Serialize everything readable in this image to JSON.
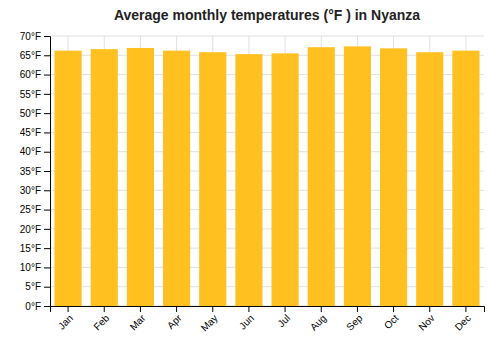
{
  "chart_data": {
    "type": "bar",
    "title": "Average monthly temperatures (°F ) in Nyanza",
    "categories": [
      "Jan",
      "Feb",
      "Mar",
      "Apr",
      "May",
      "Jun",
      "Jul",
      "Aug",
      "Sep",
      "Oct",
      "Nov",
      "Dec"
    ],
    "values": [
      66.2,
      66.6,
      66.9,
      66.2,
      65.8,
      65.3,
      65.5,
      67.1,
      67.3,
      66.8,
      65.8,
      66.2
    ],
    "color": "#FFC020",
    "ylim": [
      0,
      70
    ],
    "yticks": [
      {
        "value": 0,
        "label": "0°F"
      },
      {
        "value": 5,
        "label": "5°F"
      },
      {
        "value": 10,
        "label": "10°F"
      },
      {
        "value": 15,
        "label": "15°F"
      },
      {
        "value": 20,
        "label": "20°F"
      },
      {
        "value": 25,
        "label": "25°F"
      },
      {
        "value": 30,
        "label": "30°F"
      },
      {
        "value": 35,
        "label": "35°F"
      },
      {
        "value": 40,
        "label": "40°F"
      },
      {
        "value": 45,
        "label": "45°F"
      },
      {
        "value": 50,
        "label": "50°F"
      },
      {
        "value": 55,
        "label": "55°F"
      },
      {
        "value": 60,
        "label": "60°F"
      },
      {
        "value": 65,
        "label": "65°F"
      },
      {
        "value": 70,
        "label": "70°F"
      }
    ],
    "grid": true
  }
}
